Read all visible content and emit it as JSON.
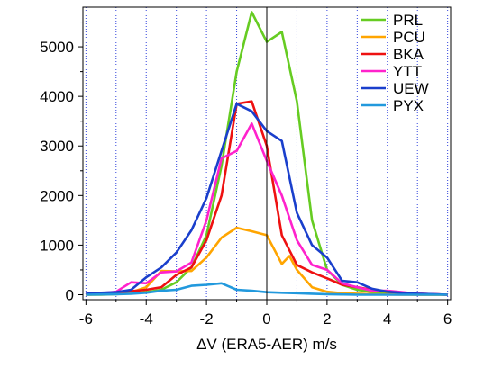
{
  "chart_data": {
    "type": "line",
    "title": "",
    "xlabel": "ΔV (ERA5-AER) m/s",
    "ylabel": "",
    "xlim": [
      -6.1,
      6.1
    ],
    "ylim": [
      -100,
      5800
    ],
    "xticks": [
      -6,
      -4,
      -2,
      0,
      2,
      4,
      6
    ],
    "yticks": [
      0,
      1000,
      2000,
      3000,
      4000,
      5000
    ],
    "grid": "vertical dotted at integer x",
    "legend_position": "top-right",
    "series": [
      {
        "name": "PRL",
        "color": "#66cc22",
        "x": [
          -6,
          -5.5,
          -5,
          -4.5,
          -4,
          -3.5,
          -3,
          -2.5,
          -2,
          -1.5,
          -1,
          -0.5,
          0,
          0.5,
          1,
          1.5,
          2,
          2.5,
          3,
          3.5,
          4,
          4.5,
          5,
          5.5,
          6
        ],
        "y": [
          0,
          0,
          10,
          30,
          50,
          100,
          250,
          550,
          1200,
          2600,
          4500,
          5700,
          5100,
          5300,
          3900,
          1500,
          500,
          200,
          100,
          50,
          20,
          10,
          0,
          0,
          0
        ]
      },
      {
        "name": "PCU",
        "color": "#ffa500",
        "x": [
          -6,
          -5.5,
          -5,
          -4.5,
          -4,
          -3.5,
          -3,
          -2.5,
          -2,
          -1.5,
          -1,
          -0.5,
          0,
          0.5,
          0.75,
          1,
          1.5,
          2,
          2.5,
          3,
          3.5,
          4,
          4.5,
          5,
          5.5,
          6
        ],
        "y": [
          0,
          10,
          20,
          50,
          150,
          480,
          470,
          480,
          750,
          1150,
          1350,
          1280,
          1200,
          620,
          780,
          500,
          150,
          60,
          30,
          20,
          10,
          5,
          0,
          0,
          0,
          0
        ]
      },
      {
        "name": "BKA",
        "color": "#ee1111",
        "x": [
          -6,
          -5.5,
          -5,
          -4.5,
          -4,
          -3.5,
          -3,
          -2.5,
          -2,
          -1.5,
          -1,
          -0.5,
          0,
          0.5,
          1,
          1.5,
          2,
          2.5,
          3,
          3.5,
          4,
          4.5,
          5,
          5.5,
          6
        ],
        "y": [
          10,
          20,
          40,
          70,
          100,
          150,
          400,
          550,
          1100,
          2000,
          3850,
          3900,
          3000,
          1200,
          600,
          450,
          330,
          200,
          150,
          100,
          60,
          40,
          20,
          10,
          0
        ]
      },
      {
        "name": "YTT",
        "color": "#ff22cc",
        "x": [
          -6,
          -5.5,
          -5,
          -4.5,
          -4,
          -3.5,
          -3,
          -2.5,
          -2,
          -1.5,
          -1,
          -0.5,
          0,
          0.5,
          1,
          1.5,
          2,
          2.5,
          3,
          3.5,
          4,
          4.5,
          5,
          5.5,
          6
        ],
        "y": [
          20,
          30,
          60,
          250,
          230,
          450,
          470,
          650,
          1500,
          2750,
          2900,
          3450,
          2700,
          2000,
          1100,
          600,
          500,
          230,
          150,
          80,
          80,
          50,
          20,
          10,
          0
        ]
      },
      {
        "name": "UEW",
        "color": "#1a3fcc",
        "x": [
          -6,
          -5.5,
          -5,
          -4.5,
          -4,
          -3.5,
          -3,
          -2.5,
          -2,
          -1.5,
          -1,
          -0.5,
          0,
          0.5,
          1,
          1.5,
          2,
          2.5,
          3,
          3.5,
          4,
          4.5,
          5,
          5.5,
          6
        ],
        "y": [
          30,
          40,
          50,
          100,
          350,
          550,
          850,
          1300,
          1950,
          2900,
          3850,
          3700,
          3300,
          3100,
          1650,
          1000,
          750,
          280,
          250,
          120,
          60,
          40,
          20,
          10,
          0
        ]
      },
      {
        "name": "PYX",
        "color": "#2299dd",
        "x": [
          -6,
          -5.5,
          -5,
          -4.5,
          -4,
          -3.5,
          -3,
          -2.5,
          -2,
          -1.5,
          -1,
          -0.5,
          0,
          0.5,
          1,
          1.5,
          2,
          2.5,
          3,
          3.5,
          4,
          4.5,
          5,
          5.5,
          6
        ],
        "y": [
          0,
          5,
          10,
          20,
          40,
          80,
          100,
          180,
          200,
          230,
          100,
          80,
          50,
          40,
          30,
          20,
          10,
          5,
          0,
          0,
          0,
          0,
          0,
          0,
          0
        ]
      }
    ]
  }
}
